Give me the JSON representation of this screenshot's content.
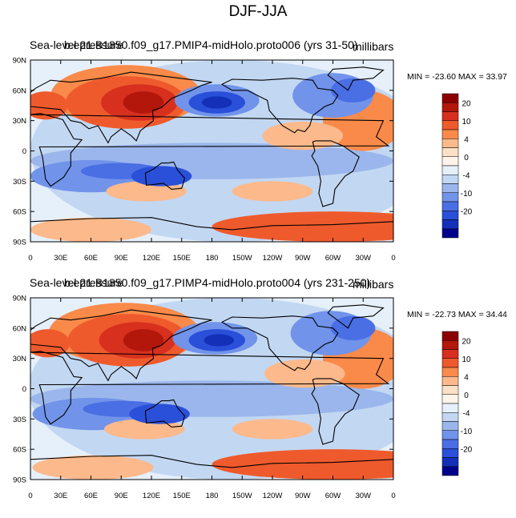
{
  "title": "DJF-JJA",
  "panels": [
    {
      "left_label": "Sea-level pressure",
      "center_label": "b.e21.B1850.f09_g17.PMIP4-midHolo.proto006 (yrs 31-50)",
      "right_label": "millibars",
      "stats": "MIN = -23.60 MAX =  33.97"
    },
    {
      "left_label": "Sea-level pressure",
      "center_label": "b.e21.B1850.f09_g17.PIMP4-midHolo.proto004 (yrs 231-250)",
      "right_label": "millibars",
      "stats": "MIN = -22.73 MAX =  34.44"
    }
  ],
  "axes": {
    "lat_labels": [
      "90N",
      "60N",
      "30N",
      "0",
      "30S",
      "60S",
      "90S"
    ],
    "lon_labels": [
      "0",
      "30E",
      "60E",
      "90E",
      "120E",
      "150E",
      "180",
      "150W",
      "120W",
      "90W",
      "60W",
      "30W",
      "0"
    ]
  },
  "colorbar": {
    "labels": [
      "20",
      "10",
      "4",
      "0",
      "-4",
      "-10",
      "-20"
    ],
    "colors": [
      "#8b0000",
      "#b3170b",
      "#d7301f",
      "#ef5a2c",
      "#f98a4a",
      "#fcb98b",
      "#fde0c5",
      "#fff4ea",
      "#e6f0fb",
      "#c2d7f2",
      "#9bb6ec",
      "#7193ea",
      "#4a6ee4",
      "#2a4fd8",
      "#1430b8",
      "#00008b"
    ]
  }
}
